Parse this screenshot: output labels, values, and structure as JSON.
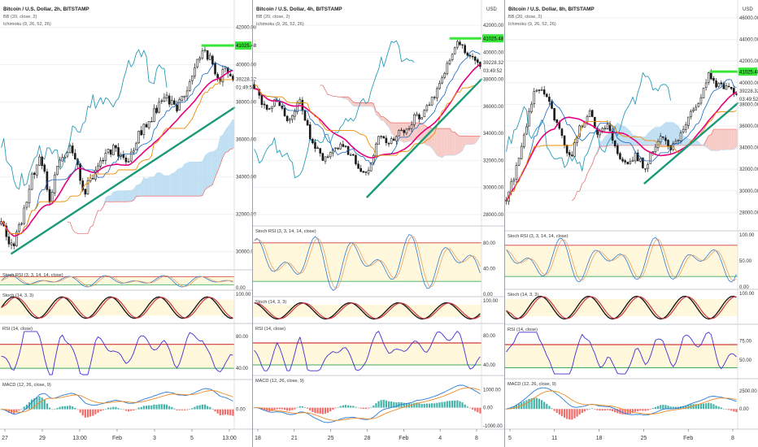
{
  "colors": {
    "up": "#26a69a",
    "down": "#ef5350",
    "candle": "#1b1b1b",
    "trendline": "#1a9a78",
    "bb_mid": "#e6007e",
    "tenkan": "#1565c0",
    "kijun": "#ef8b00",
    "span_line": "#2a9db7",
    "cloud_bull": "#b9dcf2",
    "cloud_bear": "#f6c7c1",
    "stoch_k": "#2a7bd6",
    "stoch_d": "#e8a06a",
    "rsi_line": "#3f2fd1",
    "macd_line": "#2a7bd6",
    "signal_line": "#f08a24",
    "band_fill": "#fff8dc",
    "overbought": "#d23a3a",
    "oversold": "#3ea85a",
    "price_badge": "#39e639"
  },
  "chart_data": [
    {
      "type": "candlestick",
      "title": "Bitcoin / U.S. Dollar, 2h, BITSTAMP",
      "overlays": [
        "BB (20, close, 2)",
        "Ichimoku (9, 26, 52, 26)"
      ],
      "price_axis_ticks": [
        "42000.00",
        "40000.00",
        "38000.00",
        "36000.00",
        "34000.00",
        "32000.00",
        "30000.00"
      ],
      "ylim": [
        29200,
        43200
      ],
      "price_labels": [
        "41025.48",
        "39228.32",
        "01:49:52"
      ],
      "close_path": [
        [
          0,
          31500
        ],
        [
          0.05,
          30200
        ],
        [
          0.09,
          31800
        ],
        [
          0.13,
          33900
        ],
        [
          0.17,
          35200
        ],
        [
          0.21,
          32800
        ],
        [
          0.25,
          34800
        ],
        [
          0.3,
          35600
        ],
        [
          0.36,
          33200
        ],
        [
          0.42,
          34600
        ],
        [
          0.48,
          35500
        ],
        [
          0.54,
          34700
        ],
        [
          0.6,
          36400
        ],
        [
          0.65,
          37200
        ],
        [
          0.7,
          38300
        ],
        [
          0.76,
          37600
        ],
        [
          0.82,
          39400
        ],
        [
          0.87,
          41000
        ],
        [
          0.9,
          40300
        ],
        [
          0.94,
          39300
        ],
        [
          0.97,
          39700
        ],
        [
          1,
          39228
        ]
      ],
      "trendline": [
        [
          0.05,
          29900
        ],
        [
          1,
          37700
        ]
      ],
      "x_ticks": [
        "27",
        "29",
        "13:00",
        "Feb",
        "3",
        "5",
        "13:00"
      ],
      "indicators": {
        "stoch_rsi": {
          "label": "Stoch RSI (3, 3, 14, 14, close)",
          "ticks": [
            "0.00"
          ]
        },
        "stoch": {
          "label": "Stoch (14, 3, 3)",
          "ticks": [
            "100.00"
          ]
        },
        "rsi": {
          "label": "RSI (14, close)",
          "ticks": [
            "80.00",
            "40.00"
          ]
        },
        "macd": {
          "label": "MACD (12, 26, close, 9)",
          "ticks": [
            "0.00"
          ]
        }
      }
    },
    {
      "type": "candlestick",
      "title": "Bitcoin / U.S. Dollar, 4h, BITSTAMP",
      "overlays": [
        "BB (20, close, 2)",
        "Ichimoku (9, 26, 52, 26)"
      ],
      "price_axis_ticks": [
        "42000.00",
        "40000.00",
        "38000.00",
        "36000.00",
        "34000.00",
        "32000.00",
        "30000.00",
        "28000.00"
      ],
      "ylim": [
        27400,
        43500
      ],
      "price_labels": [
        "41025.48",
        "39228.32",
        "03:49:52"
      ],
      "close_path": [
        [
          0,
          37600
        ],
        [
          0.05,
          35800
        ],
        [
          0.1,
          36600
        ],
        [
          0.15,
          34900
        ],
        [
          0.2,
          36400
        ],
        [
          0.25,
          33600
        ],
        [
          0.3,
          32100
        ],
        [
          0.35,
          32700
        ],
        [
          0.4,
          33100
        ],
        [
          0.45,
          31800
        ],
        [
          0.5,
          30900
        ],
        [
          0.55,
          33800
        ],
        [
          0.6,
          33400
        ],
        [
          0.66,
          34200
        ],
        [
          0.71,
          35100
        ],
        [
          0.76,
          35600
        ],
        [
          0.81,
          37400
        ],
        [
          0.86,
          39100
        ],
        [
          0.9,
          41000
        ],
        [
          0.94,
          39800
        ],
        [
          1,
          39228
        ]
      ],
      "trendline": [
        [
          0.5,
          29300
        ],
        [
          1,
          38000
        ]
      ],
      "x_ticks": [
        "18",
        "21",
        "25",
        "28",
        "Feb",
        "4",
        "8"
      ],
      "indicators": {
        "stoch_rsi": {
          "label": "Stoch RSI (3, 3, 14, 14, close)",
          "ticks": [
            "80.00",
            "40.00",
            "0.00"
          ]
        },
        "stoch": {
          "label": "Stoch (14, 3, 3)",
          "ticks": [
            "100.00"
          ]
        },
        "rsi": {
          "label": "RSI (14, close)",
          "ticks": [
            "80.00",
            "40.00"
          ]
        },
        "macd": {
          "label": "MACD (12, 26, close, 9)",
          "ticks": [
            "1000.00",
            "0.00",
            "-1000.00"
          ]
        }
      }
    },
    {
      "type": "candlestick",
      "title": "Bitcoin / U.S. Dollar, 8h, BITSTAMP",
      "overlays": [
        "BB (20, close, 2)",
        "Ichimoku (9, 26, 52, 26)"
      ],
      "price_axis_ticks": [
        "46000.00",
        "44000.00",
        "42000.00",
        "40000.00",
        "38000.00",
        "36000.00",
        "34000.00",
        "32000.00",
        "30000.00",
        "28000.00"
      ],
      "ylim": [
        26600,
        47200
      ],
      "price_labels": [
        "41025.48",
        "39228.32",
        "03:49:52"
      ],
      "close_path": [
        [
          0,
          29200
        ],
        [
          0.04,
          31800
        ],
        [
          0.08,
          35600
        ],
        [
          0.12,
          38900
        ],
        [
          0.16,
          39600
        ],
        [
          0.2,
          37400
        ],
        [
          0.24,
          35100
        ],
        [
          0.28,
          33000
        ],
        [
          0.32,
          35800
        ],
        [
          0.36,
          37200
        ],
        [
          0.4,
          35400
        ],
        [
          0.44,
          36300
        ],
        [
          0.48,
          33600
        ],
        [
          0.52,
          32400
        ],
        [
          0.56,
          33500
        ],
        [
          0.6,
          31900
        ],
        [
          0.64,
          34100
        ],
        [
          0.68,
          34900
        ],
        [
          0.72,
          33800
        ],
        [
          0.76,
          35400
        ],
        [
          0.8,
          37000
        ],
        [
          0.84,
          38200
        ],
        [
          0.88,
          40600
        ],
        [
          0.92,
          39600
        ],
        [
          0.96,
          39400
        ],
        [
          1,
          39228
        ]
      ],
      "trendline": [
        [
          0.6,
          30700
        ],
        [
          1,
          38100
        ]
      ],
      "x_ticks": [
        "5",
        "11",
        "18",
        "25",
        "Feb",
        "8"
      ],
      "indicators": {
        "stoch_rsi": {
          "label": "Stoch RSI (3, 3, 14, 14, close)",
          "ticks": [
            "100.00",
            "50.00",
            "0.00"
          ]
        },
        "stoch": {
          "label": "Stoch (14, 3, 3)",
          "ticks": [
            "100.00"
          ]
        },
        "rsi": {
          "label": "RSI (14, close)",
          "ticks": [
            "75.00",
            "50.00"
          ]
        },
        "macd": {
          "label": "MACD (12, 26, close, 9)",
          "ticks": [
            "2500.00",
            "0.00"
          ]
        }
      }
    }
  ],
  "currency_label": "USD"
}
